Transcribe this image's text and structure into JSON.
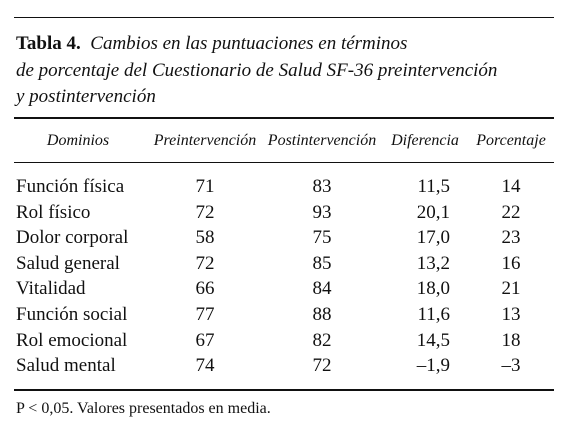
{
  "table": {
    "label": "Tabla 4.",
    "caption_lines": [
      "Cambios en las puntuaciones en términos",
      "de porcentaje del Cuestionario de Salud SF-36 preintervención",
      "y postintervención"
    ],
    "columns": [
      "Dominios",
      "Preintervención",
      "Postintervención",
      "Diferencia",
      "Porcentaje"
    ],
    "rows": [
      [
        "Función física",
        "71",
        "83",
        "11,5",
        "14"
      ],
      [
        "Rol físico",
        "72",
        "93",
        "20,1",
        "22"
      ],
      [
        "Dolor corporal",
        "58",
        "75",
        "17,0",
        "23"
      ],
      [
        "Salud general",
        "72",
        "85",
        "13,2",
        "16"
      ],
      [
        "Vitalidad",
        "66",
        "84",
        "18,0",
        "21"
      ],
      [
        "Función social",
        "77",
        "88",
        "11,6",
        "13"
      ],
      [
        "Rol emocional",
        "67",
        "82",
        "14,5",
        "18"
      ],
      [
        "Salud mental",
        "74",
        "72",
        "–1,9",
        "–3"
      ]
    ]
  },
  "footnote": "P < 0,05. Valores presentados en media."
}
